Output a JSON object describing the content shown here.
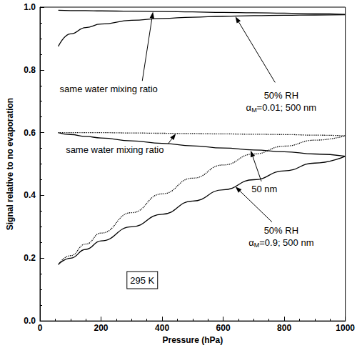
{
  "chart_data": {
    "type": "line",
    "x_label": "Pressure (hPa)",
    "y_label": "Signal relative to no evaporation",
    "x": [
      60,
      100,
      150,
      200,
      300,
      400,
      500,
      600,
      700,
      800,
      900,
      1000
    ],
    "series": [
      {
        "color": "#000000",
        "line_style": "solid",
        "values": [
          0.99,
          0.989,
          0.989,
          0.988,
          0.987,
          0.986,
          0.985,
          0.983,
          0.982,
          0.981,
          0.979,
          0.977
        ]
      },
      {
        "color": "#000000",
        "line_style": "solid",
        "values": [
          0.875,
          0.915,
          0.935,
          0.946,
          0.958,
          0.964,
          0.968,
          0.971,
          0.973,
          0.974,
          0.975,
          0.976
        ]
      },
      {
        "color": "#000000",
        "line_style": "dotted",
        "values": [
          0.6,
          0.6,
          0.6,
          0.6,
          0.599,
          0.598,
          0.597,
          0.596,
          0.595,
          0.594,
          0.592,
          0.59
        ]
      },
      {
        "color": "#000000",
        "line_style": "solid",
        "values": [
          0.6,
          0.594,
          0.588,
          0.583,
          0.574,
          0.566,
          0.558,
          0.551,
          0.545,
          0.539,
          0.532,
          0.525
        ]
      },
      {
        "color": "#000000",
        "line_style": "solid",
        "values": [
          0.18,
          0.2,
          0.228,
          0.255,
          0.3,
          0.34,
          0.382,
          0.418,
          0.45,
          0.478,
          0.503,
          0.525
        ]
      },
      {
        "color": "#000000",
        "line_style": "dotted",
        "values": [
          0.18,
          0.208,
          0.245,
          0.28,
          0.345,
          0.405,
          0.455,
          0.497,
          0.532,
          0.557,
          0.576,
          0.59
        ]
      }
    ],
    "xlim": [
      0,
      1000
    ],
    "xticks": [
      0,
      200,
      400,
      600,
      800,
      1000
    ],
    "ylim": [
      0,
      1
    ],
    "yticks": [
      {
        "value": 0,
        "label": "0.0"
      },
      {
        "value": 0.2,
        "label": "0.2"
      },
      {
        "value": 0.4,
        "label": "0.4"
      },
      {
        "value": 0.6,
        "label": "0.6"
      },
      {
        "value": 0.8,
        "label": "0.8"
      },
      {
        "value": 1,
        "label": "1.0"
      }
    ],
    "grid": false,
    "annotations": [
      {
        "text": [
          "same water mixing ratio"
        ]
      },
      {
        "text": [
          "50% RH",
          "αM=0.01; 500 nm"
        ]
      },
      {
        "text": [
          "same water mixing ratio"
        ]
      },
      {
        "text": [
          "50 nm"
        ]
      },
      {
        "text": [
          "50% RH",
          "αM=0.9; 500 nm"
        ]
      },
      {
        "text": [
          "295 K"
        ]
      }
    ]
  }
}
